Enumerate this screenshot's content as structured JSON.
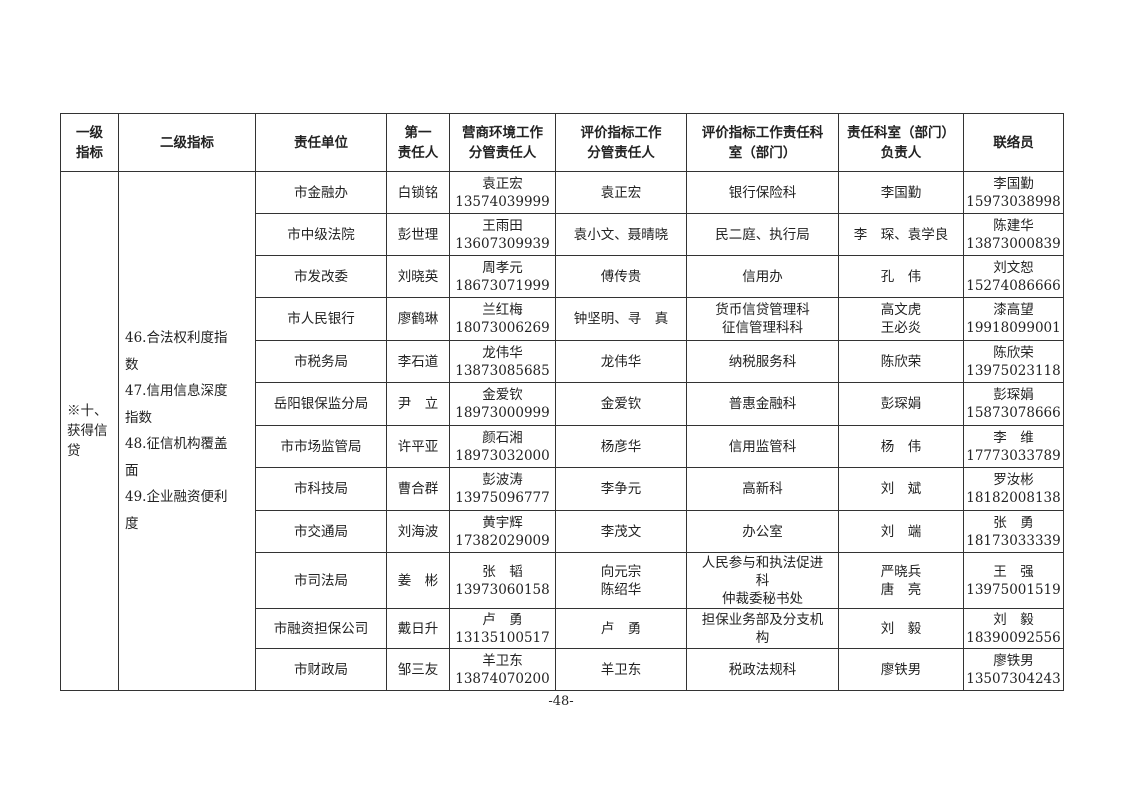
{
  "headers": [
    "一级\n指标",
    "二级指标",
    "责任单位",
    "第一\n责任人",
    "营商环境工作\n分管责任人",
    "评价指标工作\n分管责任人",
    "评价指标工作责任科\n室（部门）",
    "责任科室（部门）\n负责人",
    "联络员"
  ],
  "level1": "※十、\n获得信\n贷",
  "level2": "46.合法权利度指\n数\n47.信用信息深度\n指数\n48.征信机构覆盖\n面\n49.企业融资便利\n度",
  "rows": [
    {
      "unit": "市金融办",
      "first": "白锁铭",
      "biz": "袁正宏\n13574039999",
      "eval": "袁正宏",
      "dept": "银行保险科",
      "head": "李国勤",
      "contact": "李国勤\n15973038998"
    },
    {
      "unit": "市中级法院",
      "first": "彭世理",
      "biz": "王雨田\n13607309939",
      "eval": "袁小文、聂晴晓",
      "dept": "民二庭、执行局",
      "head": "李　琛、袁学良",
      "contact": "陈建华\n13873000839"
    },
    {
      "unit": "市发改委",
      "first": "刘晓英",
      "biz": "周孝元\n18673071999",
      "eval": "傅传贵",
      "dept": "信用办",
      "head": "孔　伟",
      "contact": "刘文恕\n15274086666"
    },
    {
      "unit": "市人民银行",
      "first": "廖鹤琳",
      "biz": "兰红梅\n18073006269",
      "eval": "钟坚明、寻　真",
      "dept": "货币信贷管理科\n征信管理科科",
      "head": "高文虎\n王必炎",
      "contact": "漆高望\n19918099001"
    },
    {
      "unit": "市税务局",
      "first": "李石道",
      "biz": "龙伟华\n13873085685",
      "eval": "龙伟华",
      "dept": "纳税服务科",
      "head": "陈欣荣",
      "contact": "陈欣荣\n13975023118"
    },
    {
      "unit": "岳阳银保监分局",
      "first": "尹　立",
      "biz": "金爱钦\n18973000999",
      "eval": "金爱钦",
      "dept": "普惠金融科",
      "head": "彭琛娟",
      "contact": "彭琛娟\n15873078666"
    },
    {
      "unit": "市市场监管局",
      "first": "许平亚",
      "biz": "颜石湘\n18973032000",
      "eval": "杨彦华",
      "dept": "信用监管科",
      "head": "杨　伟",
      "contact": "李　维\n17773033789"
    },
    {
      "unit": "市科技局",
      "first": "曹合群",
      "biz": "彭波涛\n13975096777",
      "eval": "李争元",
      "dept": "高新科",
      "head": "刘　斌",
      "contact": "罗汝彬\n18182008138"
    },
    {
      "unit": "市交通局",
      "first": "刘海波",
      "biz": "黄宇辉\n17382029009",
      "eval": "李茂文",
      "dept": "办公室",
      "head": "刘　端",
      "contact": "张　勇\n18173033339"
    },
    {
      "unit": "市司法局",
      "first": "姜　彬",
      "biz": "张　韬\n13973060158",
      "eval": "向元宗\n陈绍华",
      "dept": "人民参与和执法促进\n科\n仲裁委秘书处",
      "head": "严晓兵\n唐　亮",
      "contact": "王　强\n13975001519"
    },
    {
      "unit": "市融资担保公司",
      "first": "戴日升",
      "biz": "卢　勇\n13135100517",
      "eval": "卢　勇",
      "dept": "担保业务部及分支机\n构",
      "head": "刘　毅",
      "contact": "刘　毅\n18390092556"
    },
    {
      "unit": "市财政局",
      "first": "邹三友",
      "biz": "羊卫东\n13874070200",
      "eval": "羊卫东",
      "dept": "税政法规科",
      "head": "廖铁男",
      "contact": "廖铁男\n13507304243"
    }
  ],
  "page_number": "-48-"
}
